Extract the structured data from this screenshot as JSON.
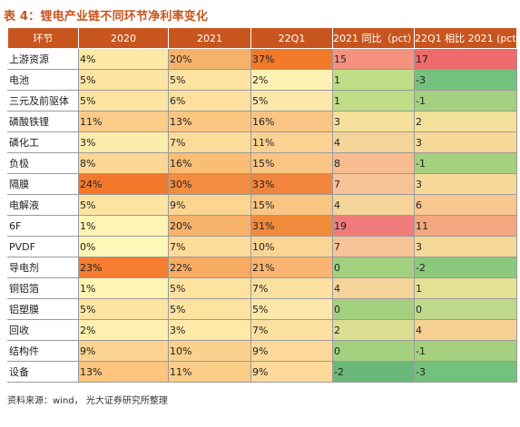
{
  "title": "表 4：锂电产业链不同环节净利率变化",
  "source": "资料来源：wind， 光大证券研究所整理",
  "colors": {
    "header_bg": "#c8551d",
    "title": "#c8551d"
  },
  "table": {
    "headers": [
      "环节",
      "2020",
      "2021",
      "22Q1",
      "2021 同比（pct）",
      "22Q1 相比 2021 (pct)"
    ],
    "rows": [
      {
        "label": "上游资源",
        "cells": [
          {
            "v": "4%",
            "bg": "#fde9a6"
          },
          {
            "v": "20%",
            "bg": "#f7b26a"
          },
          {
            "v": "37%",
            "bg": "#f07a2a"
          },
          {
            "v": "15",
            "bg": "#f4927f"
          },
          {
            "v": "17",
            "bg": "#ee6a6d"
          }
        ]
      },
      {
        "label": "电池",
        "cells": [
          {
            "v": "5%",
            "bg": "#fde4a2"
          },
          {
            "v": "5%",
            "bg": "#fde2a0"
          },
          {
            "v": "2%",
            "bg": "#fdf2b3"
          },
          {
            "v": "1",
            "bg": "#bedd86"
          },
          {
            "v": "-3",
            "bg": "#73c17c"
          }
        ]
      },
      {
        "label": "三元及前驱体",
        "cells": [
          {
            "v": "5%",
            "bg": "#fde4a2"
          },
          {
            "v": "6%",
            "bg": "#fde0a0"
          },
          {
            "v": "5%",
            "bg": "#fde8ac"
          },
          {
            "v": "1",
            "bg": "#bedd86"
          },
          {
            "v": "-1",
            "bg": "#a5d07f"
          }
        ]
      },
      {
        "label": "磷酸铁锂",
        "cells": [
          {
            "v": "11%",
            "bg": "#fbcb8a"
          },
          {
            "v": "13%",
            "bg": "#fbc681"
          },
          {
            "v": "16%",
            "bg": "#fac584"
          },
          {
            "v": "3",
            "bg": "#f4e09a"
          },
          {
            "v": "2",
            "bg": "#f3e09a"
          }
        ]
      },
      {
        "label": "磷化工",
        "cells": [
          {
            "v": "3%",
            "bg": "#feec aa"
          },
          {
            "v": "7%",
            "bg": "#fddb99"
          },
          {
            "v": "11%",
            "bg": "#fbd291"
          },
          {
            "v": "4",
            "bg": "#f5d49a"
          },
          {
            "v": "3",
            "bg": "#f7d898"
          }
        ]
      },
      {
        "label": "负极",
        "cells": [
          {
            "v": "8%",
            "bg": "#fcd796"
          },
          {
            "v": "16%",
            "bg": "#f9bd74"
          },
          {
            "v": "15%",
            "bg": "#f9c582"
          },
          {
            "v": "8",
            "bg": "#f7bc90"
          },
          {
            "v": "-1",
            "bg": "#a5d07f"
          }
        ]
      },
      {
        "label": "隔膜",
        "cells": [
          {
            "v": "24%",
            "bg": "#f3782c"
          },
          {
            "v": "30%",
            "bg": "#f28c3f"
          },
          {
            "v": "33%",
            "bg": "#f1853b"
          },
          {
            "v": "7",
            "bg": "#f7c497"
          },
          {
            "v": "3",
            "bg": "#f7d898"
          }
        ]
      },
      {
        "label": "电解液",
        "cells": [
          {
            "v": "5%",
            "bg": "#fde4a2"
          },
          {
            "v": "9%",
            "bg": "#fcd591"
          },
          {
            "v": "15%",
            "bg": "#f9c582"
          },
          {
            "v": "4",
            "bg": "#f5d49a"
          },
          {
            "v": "6",
            "bg": "#f9c890"
          }
        ]
      },
      {
        "label": "6F",
        "cells": [
          {
            "v": "1%",
            "bg": "#fff4b4"
          },
          {
            "v": "20%",
            "bg": "#f7b26a"
          },
          {
            "v": "31%",
            "bg": "#f18b3c"
          },
          {
            "v": "19",
            "bg": "#ef7c7a"
          },
          {
            "v": "11",
            "bg": "#f4a77e"
          }
        ]
      },
      {
        "label": "PVDF",
        "cells": [
          {
            "v": "0%",
            "bg": "#fff7b7"
          },
          {
            "v": "7%",
            "bg": "#fddb99"
          },
          {
            "v": "10%",
            "bg": "#fbd594"
          },
          {
            "v": "7",
            "bg": "#f7c497"
          },
          {
            "v": "3",
            "bg": "#f7d898"
          }
        ]
      },
      {
        "label": "导电剂",
        "cells": [
          {
            "v": "23%",
            "bg": "#f47d31"
          },
          {
            "v": "22%",
            "bg": "#f7ab63"
          },
          {
            "v": "21%",
            "bg": "#f8b470"
          },
          {
            "v": "0",
            "bg": "#a3d07f"
          },
          {
            "v": "-2",
            "bg": "#8cc97d"
          }
        ]
      },
      {
        "label": "铜铝箔",
        "cells": [
          {
            "v": "1%",
            "bg": "#fff4b4"
          },
          {
            "v": "5%",
            "bg": "#fde2a0"
          },
          {
            "v": "7%",
            "bg": "#fce0a0"
          },
          {
            "v": "4",
            "bg": "#f5d49a"
          },
          {
            "v": "1",
            "bg": "#e4e195"
          }
        ]
      },
      {
        "label": "铝塑膜",
        "cells": [
          {
            "v": "5%",
            "bg": "#fde4a2"
          },
          {
            "v": "5%",
            "bg": "#fde2a0"
          },
          {
            "v": "5%",
            "bg": "#fde8ac"
          },
          {
            "v": "0",
            "bg": "#a3d07f"
          },
          {
            "v": "0",
            "bg": "#bfd98a"
          }
        ]
      },
      {
        "label": "回收",
        "cells": [
          {
            "v": "2%",
            "bg": "#fff0af"
          },
          {
            "v": "3%",
            "bg": "#fee9a7"
          },
          {
            "v": "7%",
            "bg": "#fce0a0"
          },
          {
            "v": "2",
            "bg": "#dbde92"
          },
          {
            "v": "4",
            "bg": "#f6d093"
          }
        ]
      },
      {
        "label": "结构件",
        "cells": [
          {
            "v": "9%",
            "bg": "#fcd392"
          },
          {
            "v": "10%",
            "bg": "#fcd08d"
          },
          {
            "v": "9%",
            "bg": "#fcd99a"
          },
          {
            "v": "0",
            "bg": "#a3d07f"
          },
          {
            "v": "-1",
            "bg": "#a5d07f"
          }
        ]
      },
      {
        "label": "设备",
        "cells": [
          {
            "v": "13%",
            "bg": "#fbc47f"
          },
          {
            "v": "11%",
            "bg": "#fccd89"
          },
          {
            "v": "9%",
            "bg": "#fcd99a"
          },
          {
            "v": "-2",
            "bg": "#6ab877"
          },
          {
            "v": "-3",
            "bg": "#73c17c"
          }
        ]
      }
    ]
  }
}
